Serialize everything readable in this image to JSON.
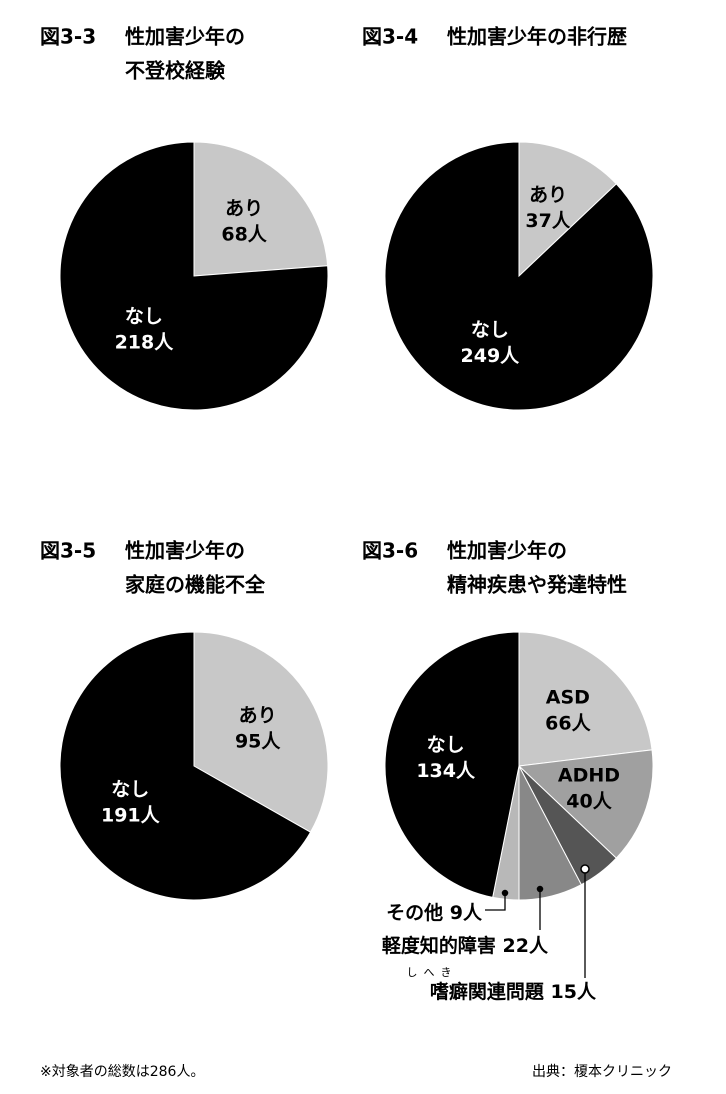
{
  "chart_data": [
    {
      "type": "pie",
      "number": "図3-3",
      "title": [
        "性加害少年の",
        "不登校経験"
      ],
      "categories": [
        "あり",
        "なし"
      ],
      "values": [
        68,
        218
      ],
      "value_labels": [
        "68人",
        "218人"
      ],
      "colors": [
        "#c8c8c8",
        "#000000"
      ]
    },
    {
      "type": "pie",
      "number": "図3-4",
      "title": [
        "性加害少年の非行歴"
      ],
      "categories": [
        "あり",
        "なし"
      ],
      "values": [
        37,
        249
      ],
      "value_labels": [
        "37人",
        "249人"
      ],
      "colors": [
        "#c8c8c8",
        "#000000"
      ]
    },
    {
      "type": "pie",
      "number": "図3-5",
      "title": [
        "性加害少年の",
        "家庭の機能不全"
      ],
      "categories": [
        "あり",
        "なし"
      ],
      "values": [
        95,
        191
      ],
      "value_labels": [
        "95人",
        "191人"
      ],
      "colors": [
        "#c8c8c8",
        "#000000"
      ]
    },
    {
      "type": "pie",
      "number": "図3-6",
      "title": [
        "性加害少年の",
        "精神疾患や発達特性"
      ],
      "categories": [
        "ASD",
        "ADHD",
        "嗜癖関連問題",
        "軽度知的障害",
        "その他",
        "なし"
      ],
      "values": [
        66,
        40,
        15,
        22,
        9,
        134
      ],
      "value_labels": [
        "66人",
        "40人",
        "15人",
        "22人",
        "9人",
        "134人"
      ],
      "colors": [
        "#c8c8c8",
        "#a0a0a0",
        "#555555",
        "#888888",
        "#b8b8b8",
        "#000000"
      ],
      "ruby": "しへき"
    }
  ],
  "footnote": "※対象者の総数は286人。",
  "source": "出典：榎本クリニック"
}
